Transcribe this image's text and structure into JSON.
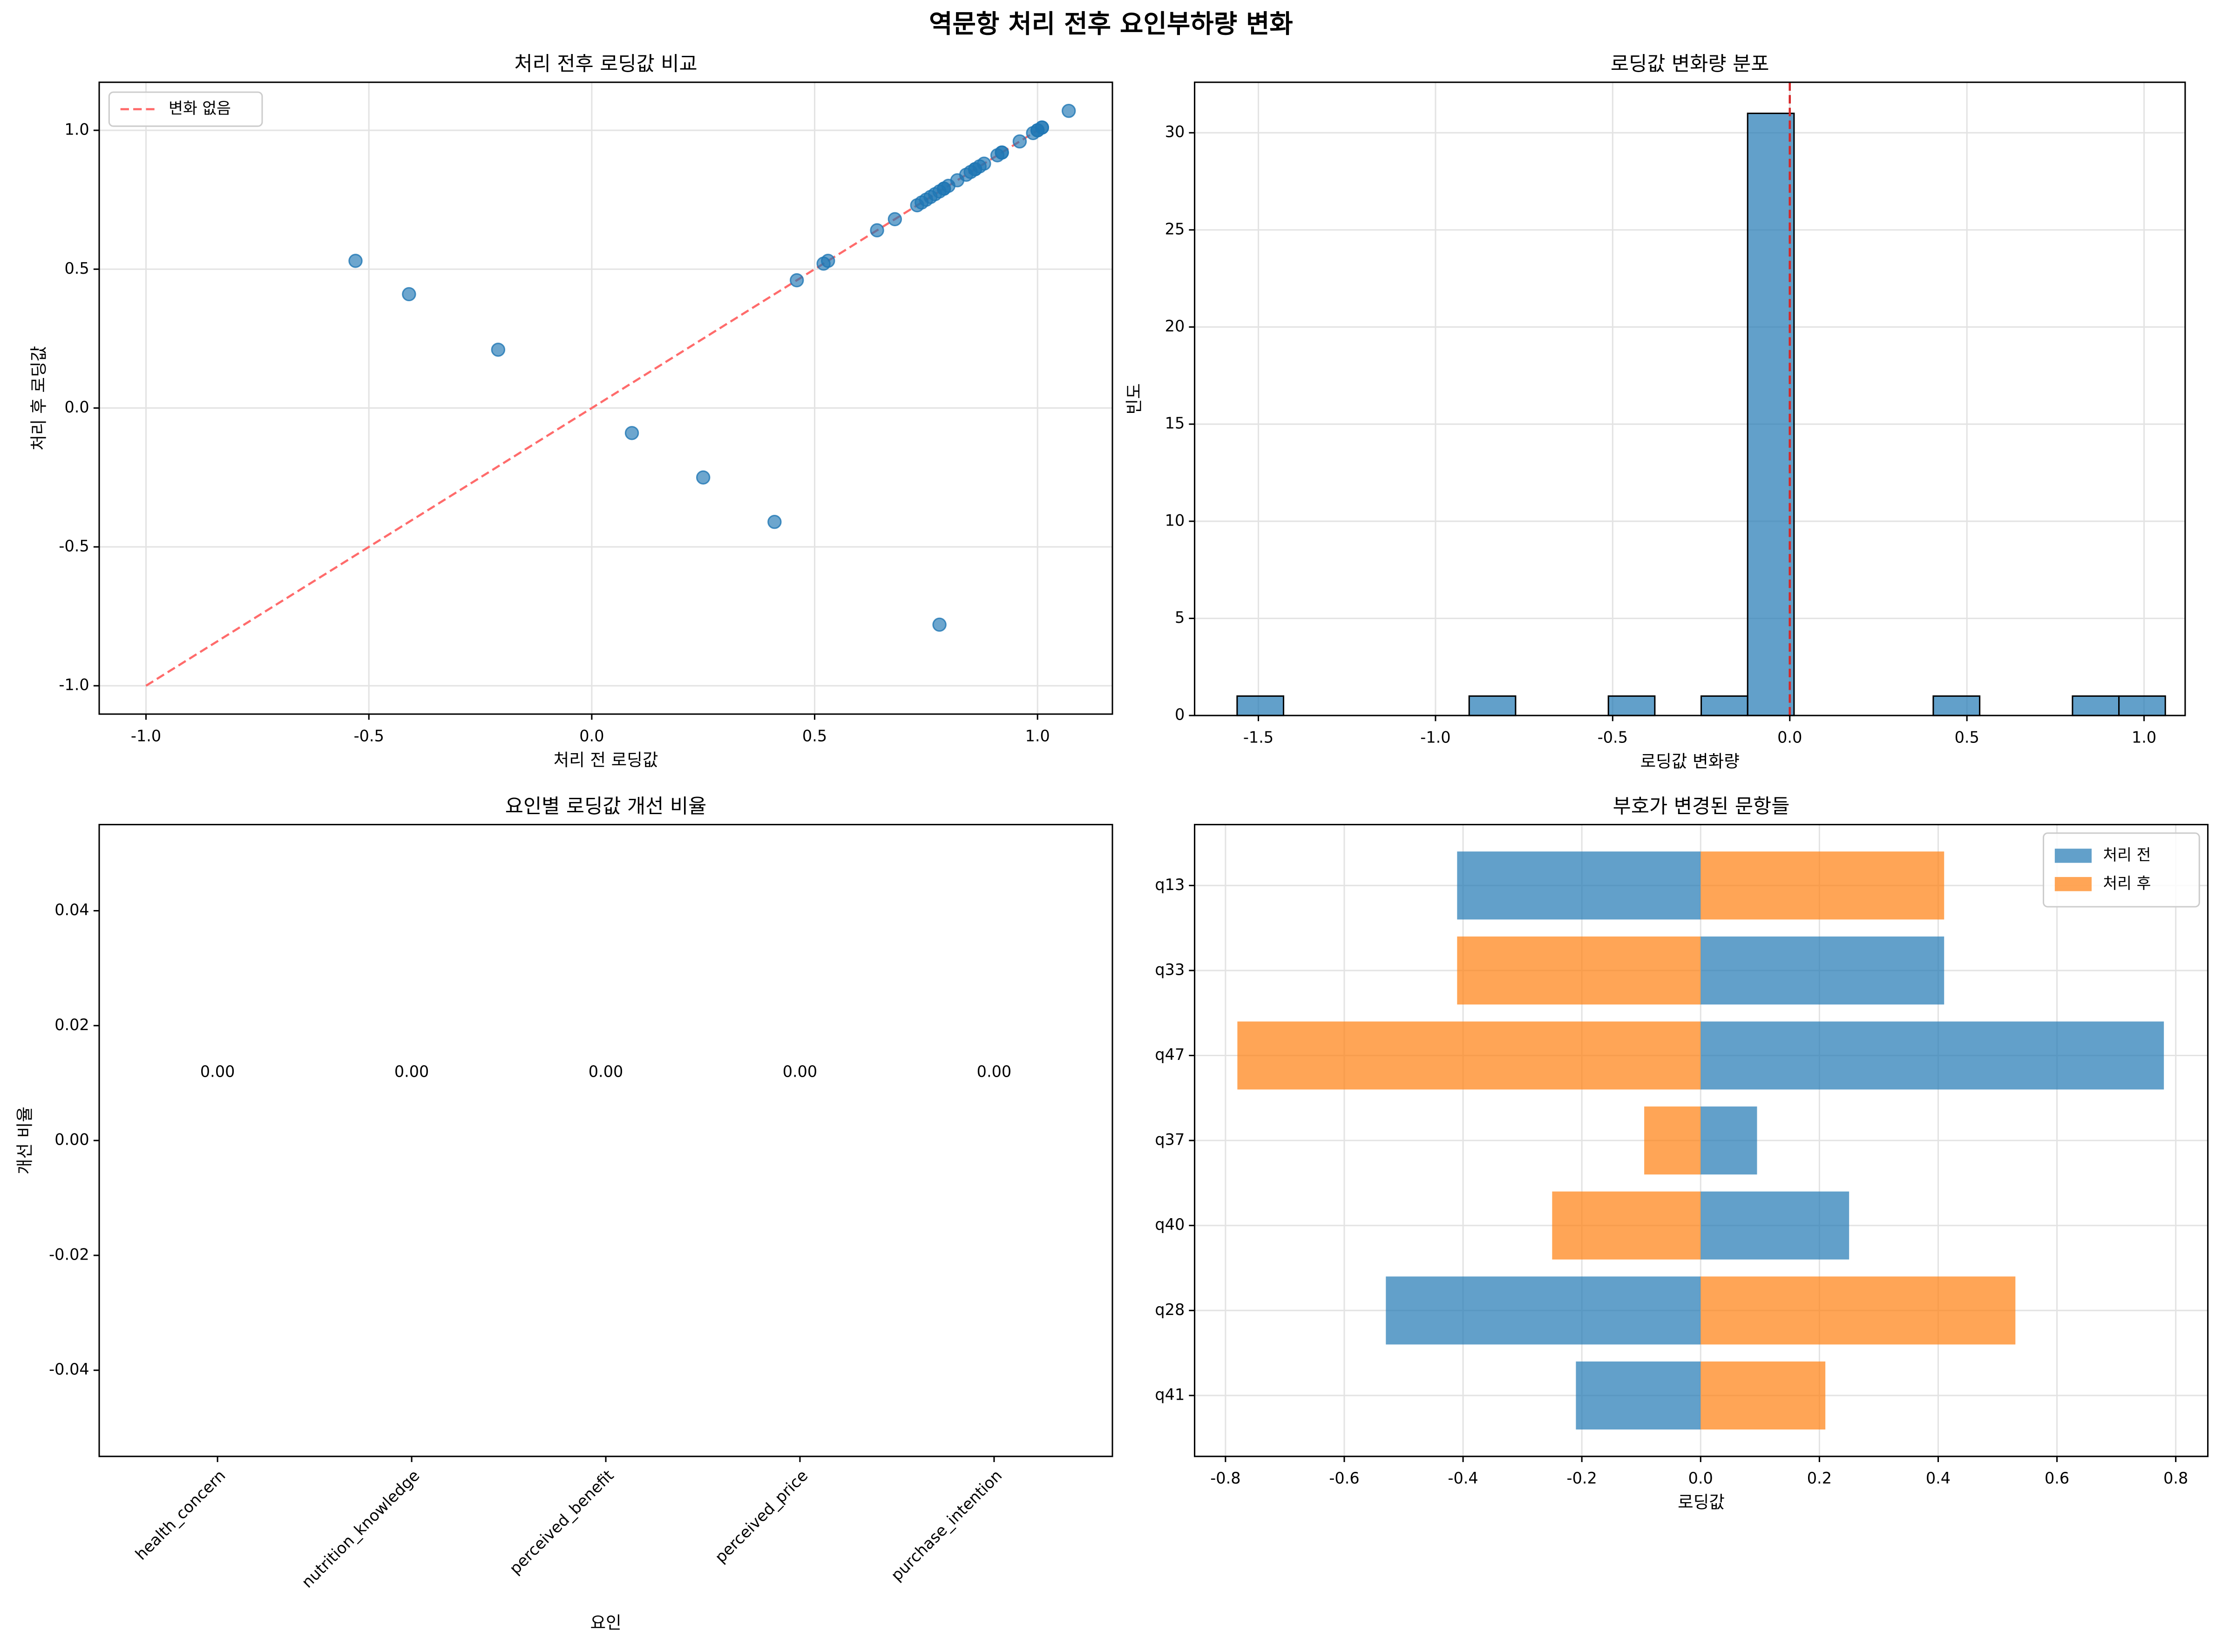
{
  "title": "역문항 처리 전후 요인부하량 변화",
  "chart_data": [
    {
      "type": "scatter",
      "title": "처리 전후 로딩값 비교",
      "xlabel": "처리 전 로딩값",
      "ylabel": "처리 후 로딩값",
      "x": [
        -0.53,
        -0.41,
        -0.21,
        0.09,
        0.25,
        0.41,
        0.78,
        0.46,
        0.52,
        0.53,
        0.64,
        0.68,
        0.73,
        0.74,
        0.75,
        0.76,
        0.77,
        0.78,
        0.79,
        0.8,
        0.82,
        0.84,
        0.85,
        0.86,
        0.87,
        0.88,
        0.91,
        0.92,
        0.92,
        0.96,
        0.99,
        1.0,
        1.0,
        1.01,
        1.01,
        1.07,
        0.86,
        0.79
      ],
      "values": [
        0.53,
        0.41,
        0.21,
        -0.09,
        -0.25,
        -0.41,
        -0.78,
        0.46,
        0.52,
        0.53,
        0.64,
        0.68,
        0.73,
        0.74,
        0.75,
        0.76,
        0.77,
        0.78,
        0.79,
        0.8,
        0.82,
        0.84,
        0.85,
        0.86,
        0.87,
        0.88,
        0.91,
        0.92,
        0.92,
        0.96,
        0.99,
        1.0,
        1.0,
        1.01,
        1.01,
        1.07,
        0.86,
        0.79
      ],
      "color": "#1f77b4",
      "reference_line": {
        "name": "변화 없음",
        "color": "#ff6b6b",
        "x": [
          -1,
          1
        ],
        "values": [
          -1,
          1
        ]
      },
      "legend": "upper left",
      "xlim": [
        -1.105,
        1.168
      ],
      "ylim": [
        -1.102,
        1.173
      ],
      "xticks": [
        {
          "value": -1,
          "label": "-1.0"
        },
        -0.5,
        {
          "value": 0,
          "label": "0.0"
        },
        0.5,
        {
          "value": 1,
          "label": "1.0"
        }
      ],
      "yticks": [
        {
          "value": -1,
          "label": "-1.0"
        },
        -0.5,
        {
          "value": 0,
          "label": "0.0"
        },
        0.5,
        {
          "value": 1,
          "label": "1.0"
        }
      ],
      "grid": true
    },
    {
      "type": "histogram",
      "title": "로딩값 변화량 분포",
      "xlabel": "로딩값 변화량",
      "ylabel": "빈도",
      "bins": [
        -1.56,
        -1.429,
        -1.298,
        -1.167,
        -1.036,
        -0.905,
        -0.774,
        -0.643,
        -0.512,
        -0.381,
        -0.25,
        -0.119,
        0.012,
        0.143,
        0.274,
        0.405,
        0.536,
        0.667,
        0.798,
        0.929,
        1.06
      ],
      "values": [
        1,
        0,
        0,
        0,
        0,
        1,
        0,
        0,
        1,
        0,
        1,
        31,
        0,
        0,
        0,
        1,
        0,
        0,
        1,
        1
      ],
      "color": "#1f77b4",
      "vline": 0,
      "vline_color": "#d62728",
      "xlim": [
        -1.68,
        1.116
      ],
      "ylim": [
        0,
        32.6
      ],
      "xticks": [
        -1.5,
        {
          "value": -1,
          "label": "-1.0"
        },
        -0.5,
        {
          "value": 0,
          "label": "0.0"
        },
        0.5,
        {
          "value": 1,
          "label": "1.0"
        }
      ],
      "yticks": [
        0,
        5,
        10,
        15,
        20,
        25,
        30
      ],
      "grid": true
    },
    {
      "type": "bar",
      "title": "요인별 로딩값 개선 비율",
      "xlabel": "요인",
      "ylabel": "개선 비율",
      "categories": [
        "health_concern",
        "nutrition_knowledge",
        "perceived_benefit",
        "perceived_price",
        "purchase_intention"
      ],
      "values": [
        0,
        0,
        0,
        0,
        0
      ],
      "value_labels": [
        "0.00",
        "0.00",
        "0.00",
        "0.00",
        "0.00"
      ],
      "color": "#1f77b4",
      "ylim": [
        -0.055,
        0.055
      ],
      "yticks": [
        -0.04,
        -0.02,
        {
          "value": 0,
          "label": "0.00"
        },
        0.02,
        0.04
      ],
      "grid": false
    },
    {
      "type": "barh",
      "title": "부호가 변경된 문항들",
      "xlabel": "로딩값",
      "categories": [
        "q13",
        "q33",
        "q47",
        "q37",
        "q40",
        "q28",
        "q41"
      ],
      "series": [
        {
          "name": "처리 전",
          "color": "#1f77b4",
          "values": [
            -0.41,
            0.41,
            0.78,
            0.095,
            0.25,
            -0.53,
            -0.21
          ]
        },
        {
          "name": "처리 후",
          "color": "#ff7f0e",
          "values": [
            0.41,
            -0.41,
            -0.78,
            -0.095,
            -0.25,
            0.53,
            0.21
          ]
        }
      ],
      "legend": "upper right",
      "xlim": [
        -0.852,
        0.854
      ],
      "xticks": [
        -0.8,
        -0.6,
        -0.4,
        -0.2,
        {
          "value": 0,
          "label": "0.0"
        },
        0.2,
        0.4,
        0.6,
        0.8
      ],
      "grid": true
    }
  ]
}
